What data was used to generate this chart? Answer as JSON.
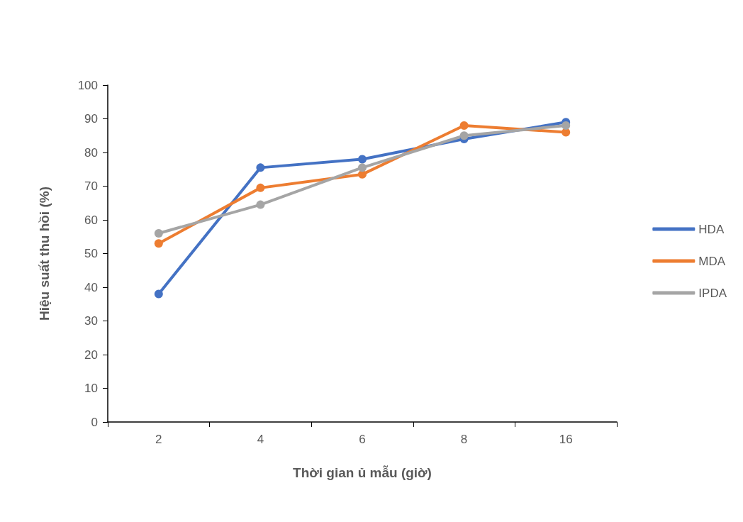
{
  "chart_data": {
    "type": "line",
    "xlabel": "Thời gian ủ mẫu (giờ)",
    "ylabel": "Hiệu suất thu hồi (%)",
    "categories": [
      "2",
      "4",
      "6",
      "8",
      "16"
    ],
    "series": [
      {
        "name": "HDA",
        "color": "#4472c4",
        "values": [
          38,
          75.5,
          78,
          84,
          89
        ]
      },
      {
        "name": "MDA",
        "color": "#ed7d31",
        "values": [
          53,
          69.5,
          73.5,
          88,
          86
        ]
      },
      {
        "name": "IPDA",
        "color": "#a5a5a5",
        "values": [
          56,
          64.5,
          75.5,
          85,
          88
        ]
      }
    ],
    "ylim": [
      0,
      100
    ],
    "yticks": [
      0,
      10,
      20,
      30,
      40,
      50,
      60,
      70,
      80,
      90,
      100
    ],
    "grid": false,
    "legend": "right",
    "marker": "circle",
    "line_style": "solid"
  }
}
